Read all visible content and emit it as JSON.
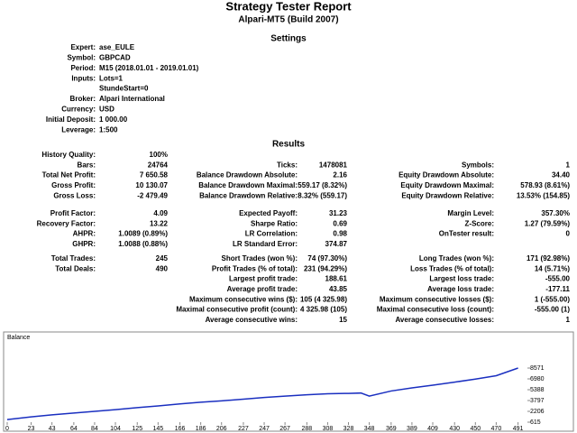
{
  "header": {
    "title": "Strategy Tester Report",
    "subtitle": "Alpari-MT5 (Build 2007)"
  },
  "settings": {
    "title": "Settings",
    "rows": [
      {
        "label": "Expert:",
        "value": "ase_EULE"
      },
      {
        "label": "Symbol:",
        "value": "GBPCAD"
      },
      {
        "label": "Period:",
        "value": "M15 (2018.01.01 - 2019.01.01)"
      },
      {
        "label": "Inputs:",
        "value": "Lots=1"
      },
      {
        "label": null,
        "value": "StundeStart=0"
      },
      {
        "label": "Broker:",
        "value": "Alpari International"
      },
      {
        "label": "Currency:",
        "value": "USD"
      },
      {
        "label": "Initial Deposit:",
        "value": "1 000.00"
      },
      {
        "label": "Leverage:",
        "value": "1:500"
      }
    ]
  },
  "results": {
    "title": "Results",
    "groups": [
      [
        [
          {
            "label": "History Quality:",
            "value": "100%"
          },
          null,
          null
        ],
        [
          {
            "label": "Bars:",
            "value": "24764"
          },
          {
            "label": "Ticks:",
            "value": "1478081"
          },
          {
            "label": "Symbols:",
            "value": "1"
          }
        ],
        [
          {
            "label": "Total Net Profit:",
            "value": "7 650.58"
          },
          {
            "label": "Balance Drawdown Absolute:",
            "value": "2.16"
          },
          {
            "label": "Equity Drawdown Absolute:",
            "value": "34.40"
          }
        ],
        [
          {
            "label": "Gross Profit:",
            "value": "10 130.07"
          },
          {
            "label": "Balance Drawdown Maximal:",
            "value": "559.17 (8.32%)"
          },
          {
            "label": "Equity Drawdown Maximal:",
            "value": "578.93 (8.61%)"
          }
        ],
        [
          {
            "label": "Gross Loss:",
            "value": "-2 479.49"
          },
          {
            "label": "Balance Drawdown Relative:",
            "value": "8.32% (559.17)"
          },
          {
            "label": "Equity Drawdown Relative:",
            "value": "13.53% (154.85)"
          }
        ]
      ],
      [
        [
          {
            "label": "Profit Factor:",
            "value": "4.09"
          },
          {
            "label": "Expected Payoff:",
            "value": "31.23"
          },
          {
            "label": "Margin Level:",
            "value": "357.30%"
          }
        ],
        [
          {
            "label": "Recovery Factor:",
            "value": "13.22"
          },
          {
            "label": "Sharpe Ratio:",
            "value": "0.69"
          },
          {
            "label": "Z-Score:",
            "value": "1.27 (79.59%)"
          }
        ],
        [
          {
            "label": "AHPR:",
            "value": "1.0089 (0.89%)"
          },
          {
            "label": "LR Correlation:",
            "value": "0.98"
          },
          {
            "label": "OnTester result:",
            "value": "0"
          }
        ],
        [
          {
            "label": "GHPR:",
            "value": "1.0088 (0.88%)"
          },
          {
            "label": "LR Standard Error:",
            "value": "374.87"
          },
          null
        ]
      ],
      [
        [
          {
            "label": "Total Trades:",
            "value": "245"
          },
          {
            "label": "Short Trades (won %):",
            "value": "74 (97.30%)"
          },
          {
            "label": "Long Trades (won %):",
            "value": "171 (92.98%)"
          }
        ],
        [
          {
            "label": "Total Deals:",
            "value": "490"
          },
          {
            "label": "Profit Trades (% of total):",
            "value": "231 (94.29%)"
          },
          {
            "label": "Loss Trades (% of total):",
            "value": "14 (5.71%)"
          }
        ],
        [
          null,
          {
            "label": "Largest profit trade:",
            "value": "188.61"
          },
          {
            "label": "Largest loss trade:",
            "value": "-555.00"
          }
        ],
        [
          null,
          {
            "label": "Average profit trade:",
            "value": "43.85"
          },
          {
            "label": "Average loss trade:",
            "value": "-177.11"
          }
        ],
        [
          null,
          {
            "label": "Maximum consecutive wins ($):",
            "value": "105 (4 325.98)"
          },
          {
            "label": "Maximum consecutive losses ($):",
            "value": "1 (-555.00)"
          }
        ],
        [
          null,
          {
            "label": "Maximal consecutive profit (count):",
            "value": "4 325.98 (105)"
          },
          {
            "label": "Maximal consecutive loss (count):",
            "value": "-555.00 (1)"
          }
        ],
        [
          null,
          {
            "label": "Average consecutive wins:",
            "value": "15"
          },
          {
            "label": "Average consecutive losses:",
            "value": "1"
          }
        ]
      ]
    ]
  },
  "balance_chart": {
    "type": "line",
    "title": "Balance",
    "color": "#1a2fc0",
    "x": [
      0,
      23,
      43,
      64,
      84,
      104,
      125,
      145,
      166,
      186,
      206,
      227,
      247,
      267,
      288,
      308,
      328,
      340,
      348,
      369,
      389,
      409,
      430,
      450,
      470,
      491
    ],
    "values": [
      1000,
      1400,
      1700,
      1950,
      2200,
      2450,
      2750,
      3000,
      3300,
      3550,
      3750,
      4000,
      4250,
      4450,
      4650,
      4800,
      4850,
      4900,
      4450,
      5200,
      5650,
      6050,
      6500,
      6950,
      7450,
      8571
    ],
    "xlim": [
      0,
      500
    ],
    "ylim": [
      615,
      12285
    ],
    "xticks": [
      0,
      23,
      43,
      64,
      84,
      104,
      125,
      145,
      166,
      186,
      206,
      227,
      247,
      267,
      288,
      308,
      328,
      348,
      369,
      389,
      409,
      430,
      450,
      470,
      491
    ],
    "yticks": [
      615,
      2206,
      3797,
      5388,
      6980,
      8571
    ],
    "grid": false
  }
}
